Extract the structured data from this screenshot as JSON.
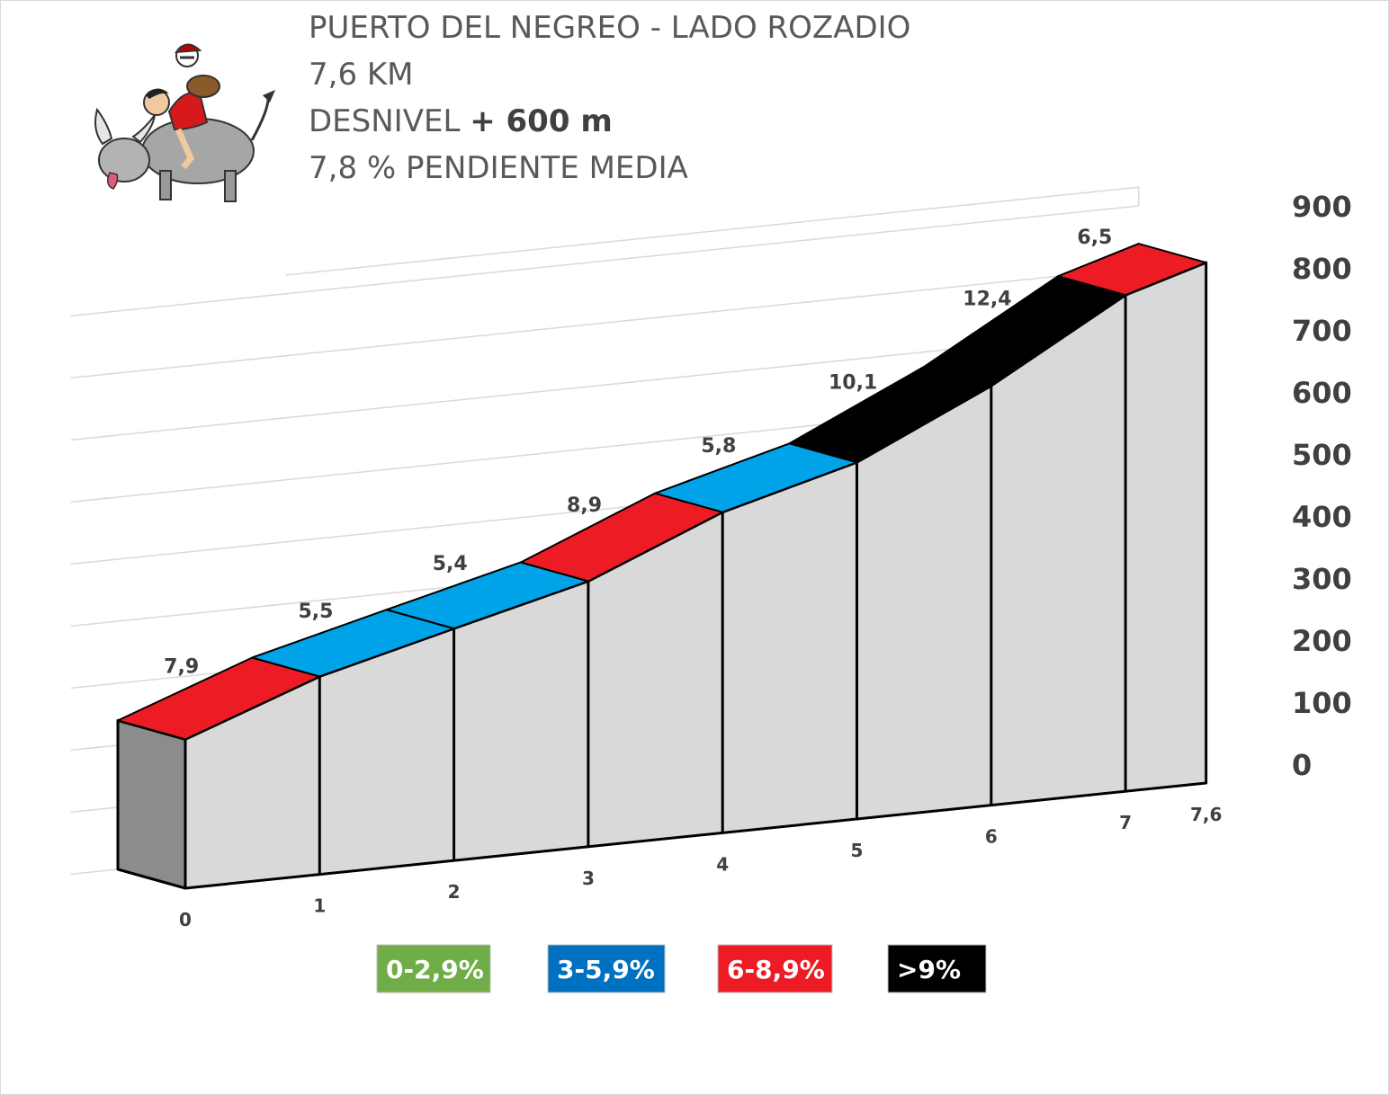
{
  "title": {
    "line1": "PUERTO DEL NEGREO - LADO ROZADIO",
    "line2": "7,6 KM",
    "line3_prefix": "DESNIVEL ",
    "line3_bold": "+ 600 m",
    "line4": "7,8 % PENDIENTE  MEDIA"
  },
  "logo": {
    "icon": "cartoon-cyclist-on-bull-icon"
  },
  "colors": {
    "cat1": "#70ad47",
    "cat2": "#0070c0",
    "cat3": "#ed1c24",
    "cat4": "#000000",
    "segment_blue": "#00a2e8",
    "side": "#d9d9d9",
    "front": "#8c8c8c"
  },
  "chart_data": {
    "type": "area",
    "style": "3d-elevation-profile",
    "x_unit": "km",
    "y_unit": "m",
    "ylim": [
      0,
      900
    ],
    "yticks": [
      "0",
      "100",
      "200",
      "300",
      "400",
      "500",
      "600",
      "700",
      "800",
      "900"
    ],
    "xticks": [
      "0",
      "1",
      "2",
      "3",
      "4",
      "5",
      "6",
      "7",
      "7,6"
    ],
    "x_values": [
      0,
      1,
      2,
      3,
      4,
      5,
      6,
      7,
      7.6
    ],
    "elevation": [
      240,
      319,
      374,
      428,
      517,
      575,
      676,
      800,
      839
    ],
    "segments": [
      {
        "from": 0,
        "to": 1,
        "grade": "7,9",
        "category": 3
      },
      {
        "from": 1,
        "to": 2,
        "grade": "5,5",
        "category": 2
      },
      {
        "from": 2,
        "to": 3,
        "grade": "5,4",
        "category": 2
      },
      {
        "from": 3,
        "to": 4,
        "grade": "8,9",
        "category": 3
      },
      {
        "from": 4,
        "to": 5,
        "grade": "5,8",
        "category": 2
      },
      {
        "from": 5,
        "to": 6,
        "grade": "10,1",
        "category": 4
      },
      {
        "from": 6,
        "to": 7,
        "grade": "12,4",
        "category": 4
      },
      {
        "from": 7,
        "to": 7.6,
        "grade": "6,5",
        "category": 3
      }
    ],
    "grid": true,
    "legend": {
      "placement": "bottom",
      "items": [
        {
          "label": "0-2,9%",
          "category": 1
        },
        {
          "label": "3-5,9%",
          "category": 2
        },
        {
          "label": "6-8,9%",
          "category": 3
        },
        {
          "label": ">9%",
          "category": 4
        }
      ]
    }
  }
}
